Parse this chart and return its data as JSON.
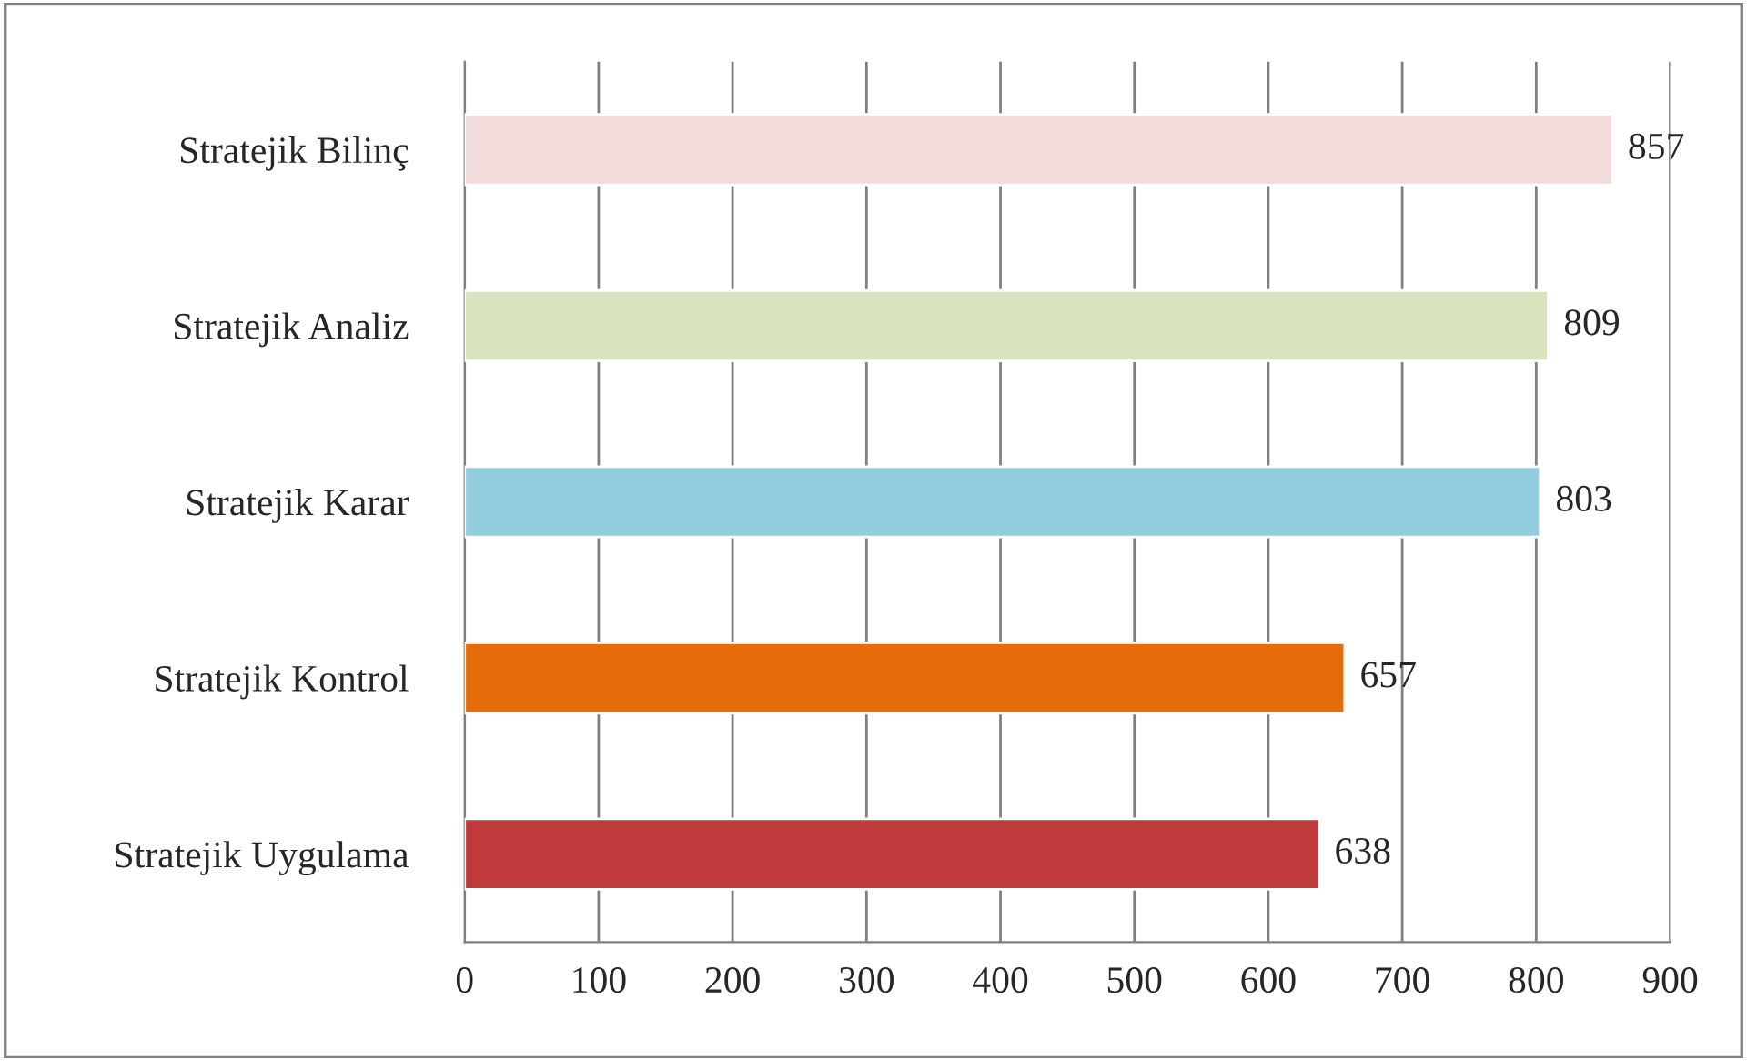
{
  "chart_data": {
    "type": "bar",
    "orientation": "horizontal",
    "categories": [
      "Stratejik Bilinç",
      "Stratejik Analiz",
      "Stratejik Karar",
      "Stratejik Kontrol",
      "Stratejik Uygulama"
    ],
    "values": [
      857,
      809,
      803,
      657,
      638
    ],
    "colors": [
      "#f2dcdb",
      "#d7e4bd",
      "#93cddd",
      "#e46c0a",
      "#c0393b"
    ],
    "xlim": [
      0,
      900
    ],
    "xticks": [
      0,
      100,
      200,
      300,
      400,
      500,
      600,
      700,
      800,
      900
    ],
    "grid": "x",
    "data_labels": true
  }
}
